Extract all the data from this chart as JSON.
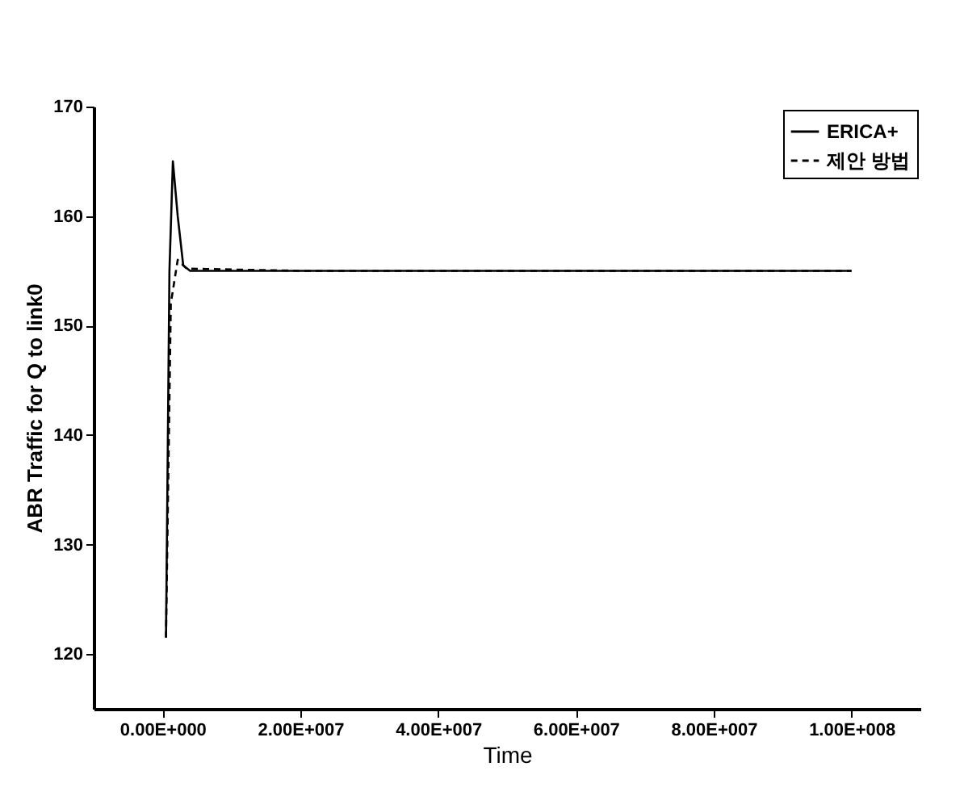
{
  "chart_data": {
    "type": "line",
    "xlabel": "Time",
    "ylabel": "ABR Traffic for Q to link0",
    "xlim": [
      -10000000,
      110000000
    ],
    "xticks": [
      {
        "value": 0,
        "label": "0.00E+000"
      },
      {
        "value": 20000000,
        "label": "2.00E+007"
      },
      {
        "value": 40000000,
        "label": "4.00E+007"
      },
      {
        "value": 60000000,
        "label": "6.00E+007"
      },
      {
        "value": 80000000,
        "label": "8.00E+007"
      },
      {
        "value": 100000000,
        "label": "1.00E+008"
      }
    ],
    "ylim": [
      115,
      170
    ],
    "yticks": [
      120,
      130,
      140,
      150,
      160,
      170
    ],
    "grid": false,
    "legend": "top right",
    "marker": "none",
    "series": [
      {
        "name": "ERICA+",
        "color": "#000000",
        "line_style": "solid",
        "x": [
          500000,
          1000000,
          1500000,
          2200000,
          3000000,
          4000000,
          20000000,
          50000000,
          80000000,
          100000000
        ],
        "values": [
          121.5,
          155,
          165,
          160,
          155.5,
          155,
          155,
          155,
          155,
          155
        ]
      },
      {
        "name": "제안 방법",
        "color": "#000000",
        "line_style": "dashed",
        "x": [
          500000,
          1200000,
          2200000,
          3500000,
          20000000,
          50000000,
          80000000,
          100000000
        ],
        "values": [
          121.5,
          152,
          156,
          155.2,
          155,
          155,
          155,
          155
        ]
      }
    ]
  }
}
